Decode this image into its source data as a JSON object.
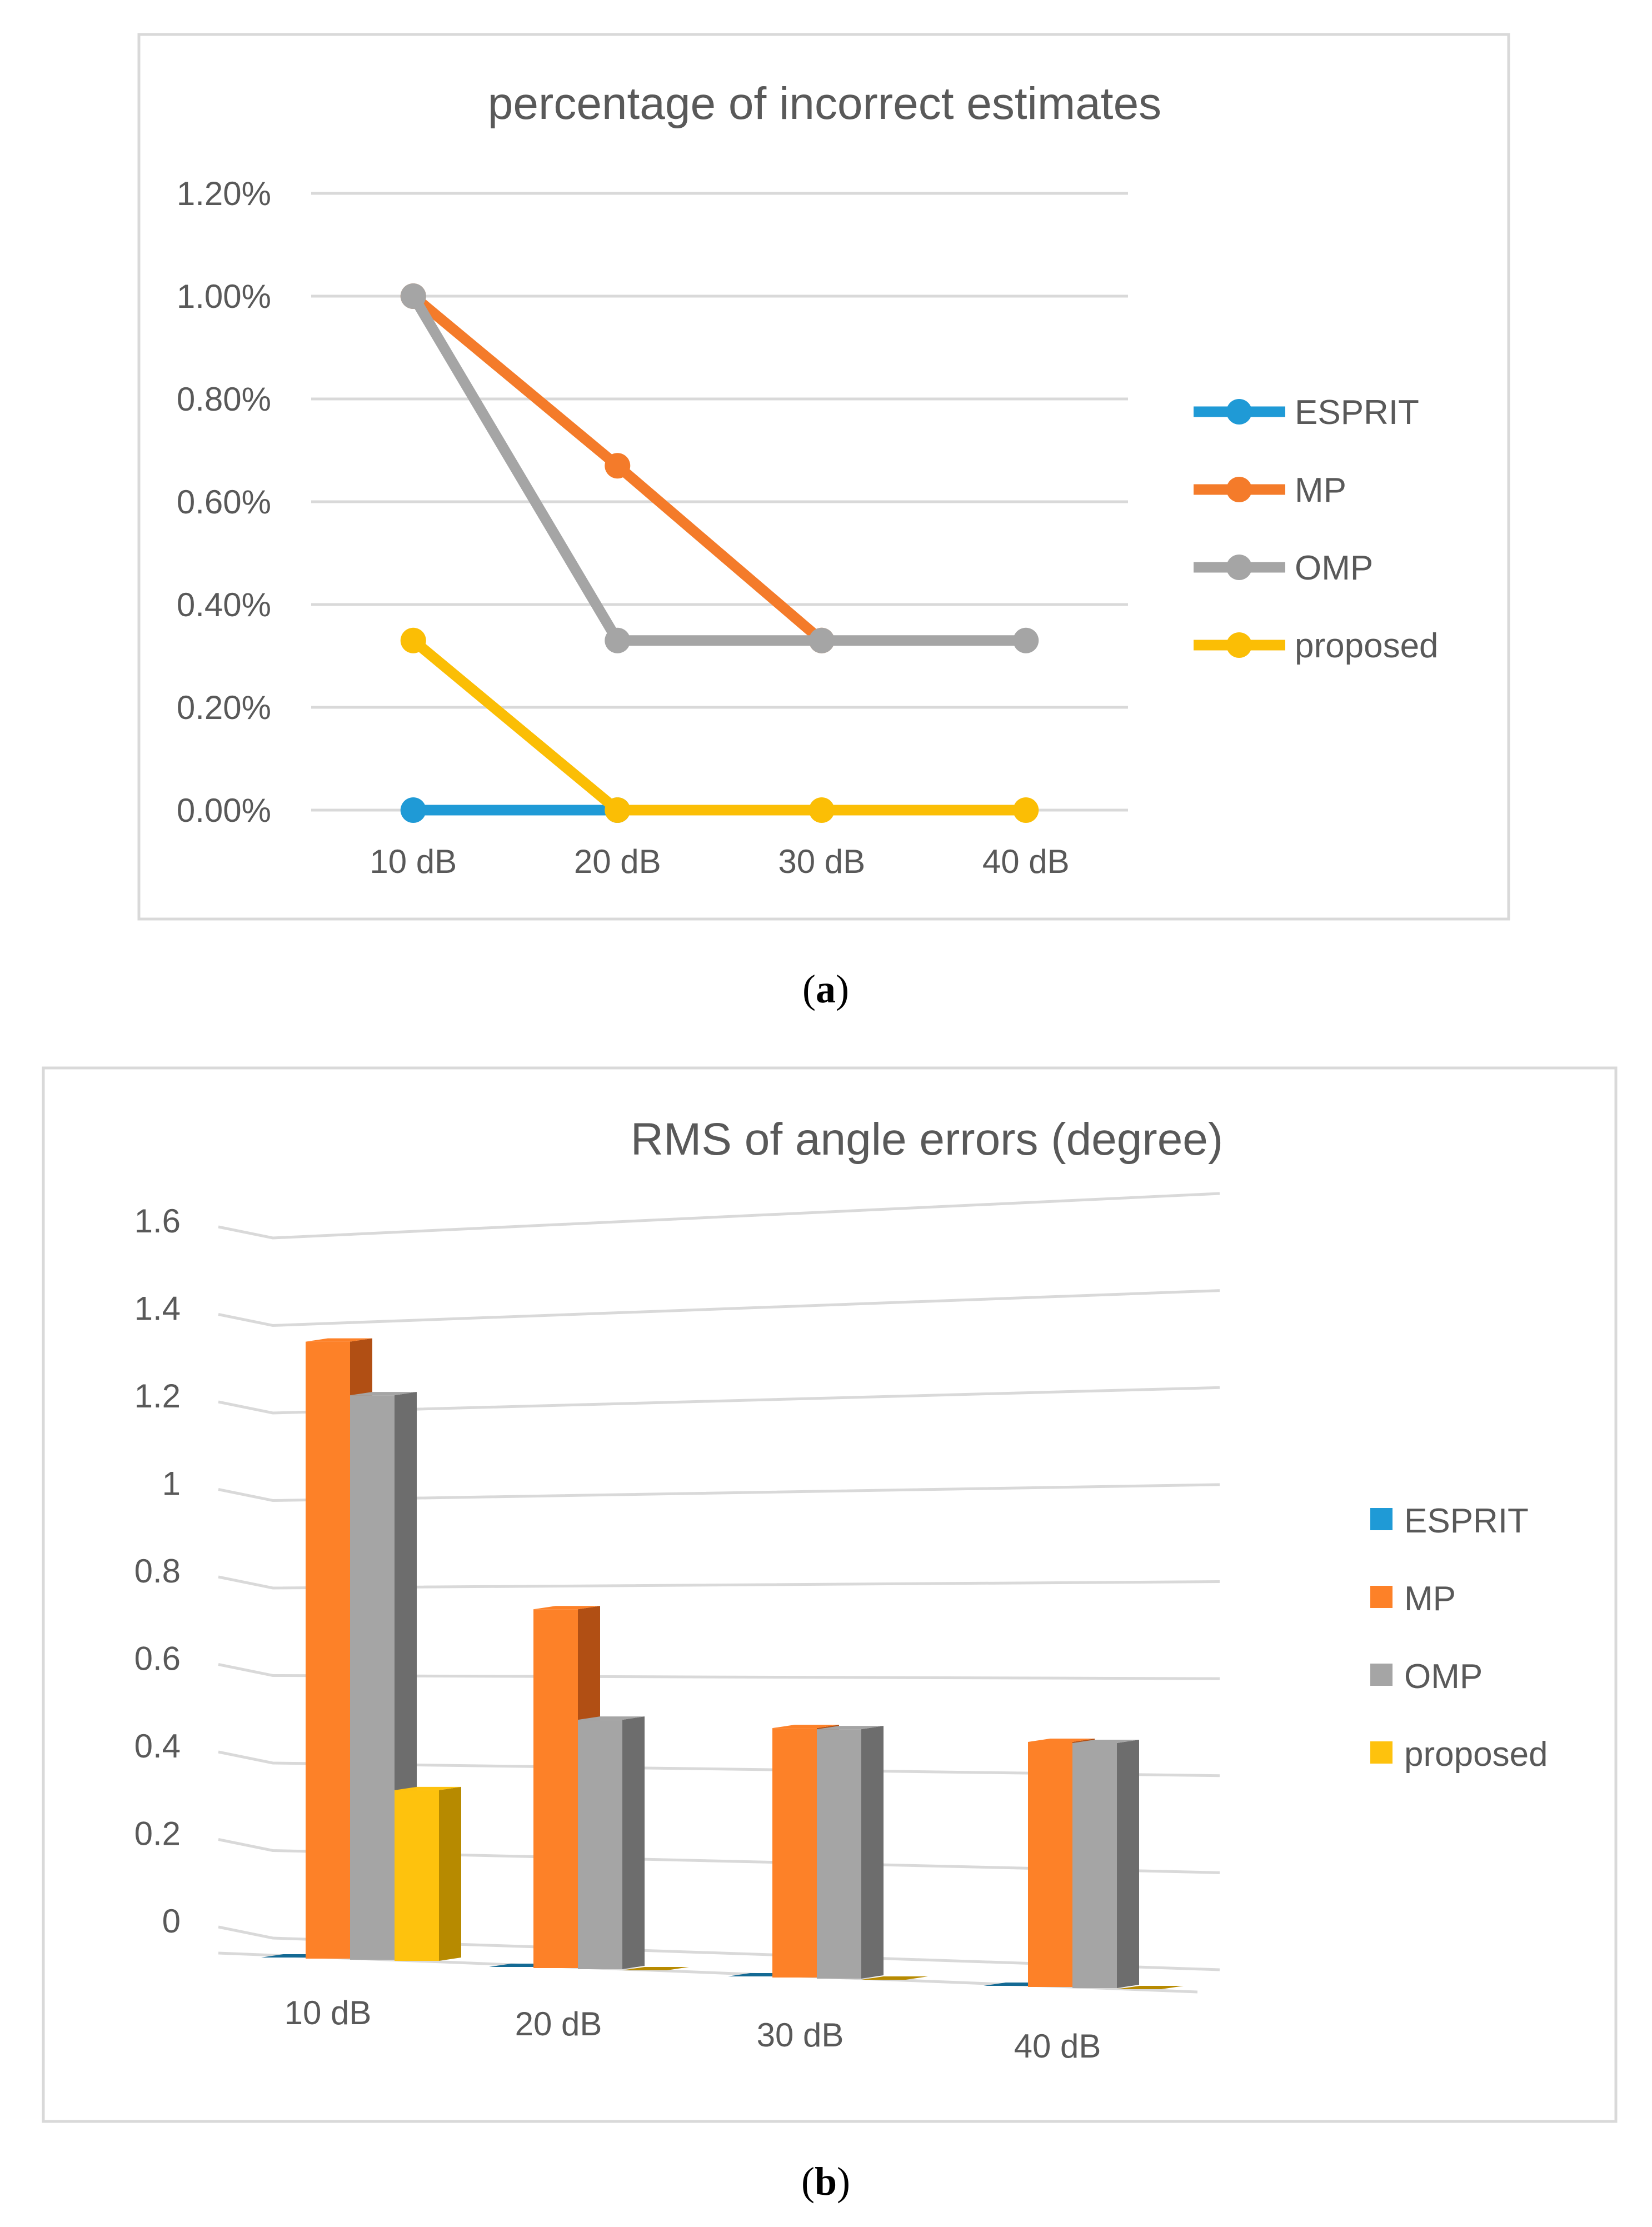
{
  "chart_data": [
    {
      "type": "line",
      "title": "percentage of incorrect estimates",
      "caption_letter": "a",
      "categories": [
        "10 dB",
        "20 dB",
        "30 dB",
        "40 dB"
      ],
      "ylim": [
        0,
        0.012
      ],
      "yticks": [
        0,
        0.002,
        0.004,
        0.006,
        0.008,
        0.01,
        0.012
      ],
      "ytick_labels": [
        "0.00%",
        "0.20%",
        "0.40%",
        "0.60%",
        "0.80%",
        "1.00%",
        "1.20%"
      ],
      "xlabel": "",
      "ylabel": "",
      "grid": true,
      "legend_position": "right",
      "series": [
        {
          "name": "ESPRIT",
          "color": "#1f9ad6",
          "values": [
            0,
            0,
            null,
            null
          ]
        },
        {
          "name": "MP",
          "color": "#f47b2a",
          "values": [
            0.01,
            0.0067,
            0.0033,
            null
          ]
        },
        {
          "name": "OMP",
          "color": "#a5a5a5",
          "values": [
            0.01,
            0.0033,
            0.0033,
            0.0033
          ]
        },
        {
          "name": "proposed",
          "color": "#fbbe05",
          "values": [
            0.0033,
            0,
            0,
            0
          ]
        }
      ]
    },
    {
      "type": "bar",
      "title": "RMS of angle errors (degree)",
      "caption_letter": "b",
      "categories": [
        "10 dB",
        "20 dB",
        "30 dB",
        "40 dB"
      ],
      "ylim": [
        0,
        1.6
      ],
      "yticks": [
        0,
        0.2,
        0.4,
        0.6,
        0.8,
        1,
        1.2,
        1.4,
        1.6
      ],
      "ytick_labels": [
        "0",
        "0.2",
        "0.4",
        "0.6",
        "0.8",
        "1",
        "1.2",
        "1.4",
        "1.6"
      ],
      "xlabel": "",
      "ylabel": "",
      "grid": true,
      "legend_position": "right",
      "series": [
        {
          "name": "ESPRIT",
          "color": "#1f9ad6",
          "dark": "#146a94",
          "values": [
            0,
            0,
            0,
            0
          ]
        },
        {
          "name": "MP",
          "color": "#fd8128",
          "dark": "#b14f14",
          "values": [
            1.41,
            0.82,
            0.57,
            0.56
          ]
        },
        {
          "name": "OMP",
          "color": "#a5a5a5",
          "dark": "#6d6d6d",
          "values": [
            1.29,
            0.57,
            0.57,
            0.56
          ]
        },
        {
          "name": "proposed",
          "color": "#fec20d",
          "dark": "#b78a00",
          "values": [
            0.39,
            0,
            0,
            0
          ]
        }
      ]
    }
  ]
}
